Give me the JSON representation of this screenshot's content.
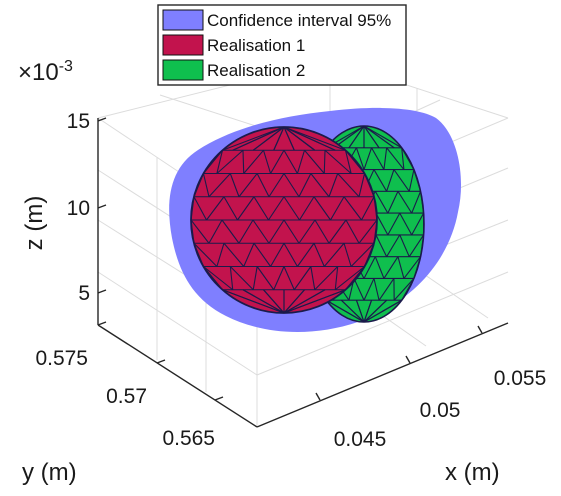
{
  "chart_data": {
    "type": "scatter",
    "subtype": "3d-surface",
    "title": "",
    "exponent_label": "×10",
    "exponent_power": "-3",
    "xlabel": "x (m)",
    "ylabel": "y (m)",
    "zlabel": "z (m)",
    "xticks": [
      "0.045",
      "0.05",
      "0.055"
    ],
    "yticks": [
      "0.575",
      "0.57",
      "0.565"
    ],
    "zticks": [
      "15",
      "10",
      "5"
    ],
    "grid": true,
    "legend_position": "top",
    "series": [
      {
        "name": "Confidence interval 95%",
        "color": "#7f7fff",
        "shape": "ellipsoid",
        "center": {
          "x": 0.05,
          "y": 0.57,
          "z": 10
        },
        "semi_axes": {
          "x": 0.009,
          "y": 0.006,
          "z": 6.5
        }
      },
      {
        "name": "Realisation 1",
        "color": "#c2134d",
        "shape": "sphere",
        "center": {
          "x": 0.049,
          "y": 0.5695,
          "z": 9.8
        },
        "radius_approx": 0.006
      },
      {
        "name": "Realisation 2",
        "color": "#0fbf4e",
        "shape": "sphere",
        "center": {
          "x": 0.051,
          "y": 0.5705,
          "z": 9.3
        },
        "radius_approx": 0.006
      }
    ]
  }
}
